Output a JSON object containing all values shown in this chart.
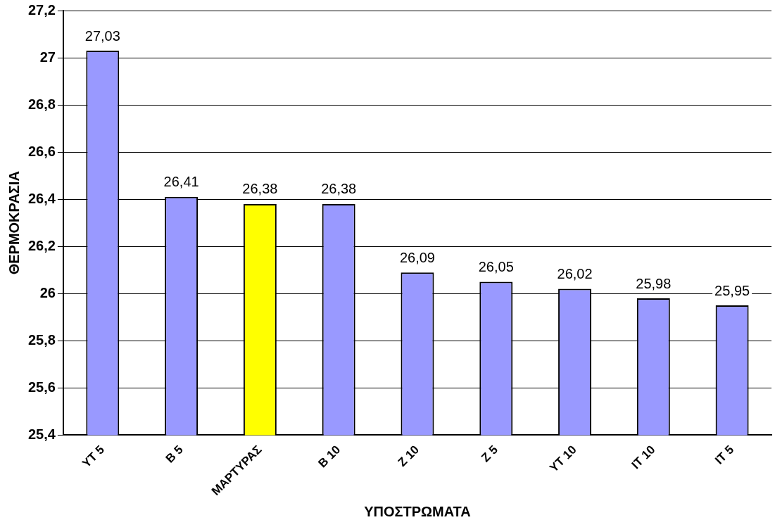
{
  "chart_data": {
    "type": "bar",
    "xlabel": "ΥΠΟΣΤΡΩΜΑΤΑ",
    "ylabel": "ΘΕΡΜΟΚΡΑΣΙΑ",
    "categories": [
      "ΥΤ 5",
      "Β 5",
      "ΜΑΡΤΥΡΑΣ",
      "Β 10",
      "Ζ 10",
      "Ζ 5",
      "ΥΤ 10",
      "ΙΤ 10",
      "ΙΤ 5"
    ],
    "values": [
      27.03,
      26.41,
      26.38,
      26.38,
      26.09,
      26.05,
      26.02,
      25.98,
      25.95
    ],
    "value_labels": [
      "27,03",
      "26,41",
      "26,38",
      "26,38",
      "26,09",
      "26,05",
      "26,02",
      "25,98",
      "25,95"
    ],
    "colors": [
      "#9999ff",
      "#9999ff",
      "#ffff00",
      "#9999ff",
      "#9999ff",
      "#9999ff",
      "#9999ff",
      "#9999ff",
      "#9999ff"
    ],
    "ylim": [
      25.4,
      27.2
    ],
    "yticks": [
      {
        "value": 25.4,
        "label": "25,4"
      },
      {
        "value": 25.6,
        "label": "25,6"
      },
      {
        "value": 25.8,
        "label": "25,8"
      },
      26,
      {
        "value": 26.2,
        "label": "26,2"
      },
      {
        "value": 26.4,
        "label": "26,4"
      },
      {
        "value": 26.6,
        "label": "26,6"
      },
      {
        "value": 26.8,
        "label": "26,8"
      },
      27,
      {
        "value": 27.2,
        "label": "27,2"
      }
    ],
    "grid": "y",
    "legend": false
  }
}
